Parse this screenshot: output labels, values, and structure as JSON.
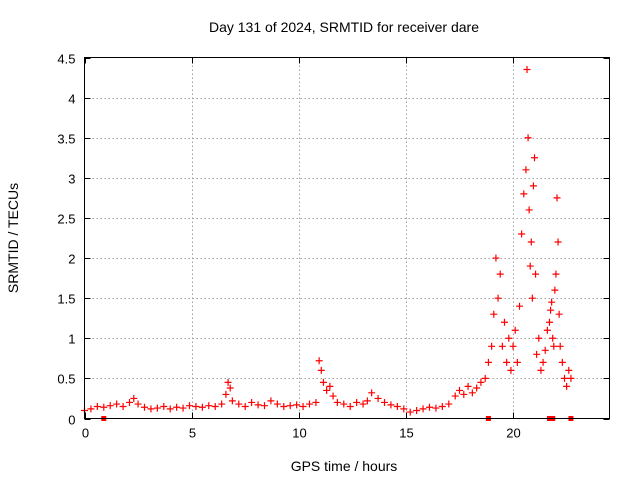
{
  "chart_data": {
    "type": "scatter",
    "title": "Day 131 of 2024, SRMTID for receiver dare",
    "xlabel": "GPS time / hours",
    "ylabel": "SRMTID / TECUs",
    "xlim": [
      0,
      24.5
    ],
    "ylim": [
      0,
      4.5
    ],
    "x_ticks": [
      0,
      5,
      10,
      15,
      20
    ],
    "x_tick_labels": [
      "0",
      "5",
      "10",
      "15",
      "20"
    ],
    "y_ticks": [
      0,
      0.5,
      1,
      1.5,
      2,
      2.5,
      3,
      3.5,
      4,
      4.5
    ],
    "y_tick_labels": [
      "0",
      "0.5",
      "1",
      "1.5",
      "2",
      "2.5",
      "3",
      "3.5",
      "4",
      "4.5"
    ],
    "grid": true,
    "marker": "+",
    "color": "#ff0000",
    "series": [
      {
        "name": "SRMTID",
        "x": [
          0.0,
          0.3,
          0.6,
          0.9,
          1.2,
          1.5,
          1.8,
          2.1,
          2.3,
          2.5,
          2.8,
          3.1,
          3.4,
          3.7,
          4.0,
          4.3,
          4.6,
          4.9,
          5.2,
          5.5,
          5.8,
          6.1,
          6.4,
          6.6,
          6.7,
          6.8,
          6.9,
          7.2,
          7.5,
          7.8,
          8.1,
          8.4,
          8.7,
          9.0,
          9.3,
          9.6,
          9.9,
          10.2,
          10.5,
          10.8,
          10.95,
          11.05,
          11.15,
          11.3,
          11.45,
          11.6,
          11.8,
          12.1,
          12.4,
          12.7,
          13.0,
          13.2,
          13.4,
          13.7,
          14.0,
          14.3,
          14.6,
          14.9,
          15.2,
          15.5,
          15.8,
          16.1,
          16.4,
          16.7,
          17.0,
          17.3,
          17.5,
          17.7,
          17.9,
          18.1,
          18.3,
          18.5,
          18.7,
          18.85,
          19.0,
          19.1,
          19.2,
          19.3,
          19.4,
          19.5,
          19.6,
          19.7,
          19.8,
          19.9,
          20.0,
          20.1,
          20.2,
          20.3,
          20.4,
          20.5,
          20.6,
          20.65,
          20.7,
          20.75,
          20.8,
          20.85,
          20.9,
          20.95,
          21.0,
          21.05,
          21.1,
          21.2,
          21.3,
          21.4,
          21.5,
          21.6,
          21.7,
          21.75,
          21.8,
          21.85,
          21.9,
          21.95,
          22.0,
          22.05,
          22.1,
          22.15,
          22.2,
          22.3,
          22.4,
          22.5,
          22.6,
          22.7
        ],
        "y": [
          0.1,
          0.12,
          0.15,
          0.14,
          0.16,
          0.18,
          0.15,
          0.2,
          0.25,
          0.18,
          0.14,
          0.12,
          0.13,
          0.15,
          0.12,
          0.14,
          0.13,
          0.16,
          0.15,
          0.14,
          0.16,
          0.15,
          0.18,
          0.3,
          0.45,
          0.38,
          0.22,
          0.18,
          0.15,
          0.2,
          0.17,
          0.16,
          0.22,
          0.18,
          0.15,
          0.16,
          0.17,
          0.15,
          0.18,
          0.2,
          0.72,
          0.6,
          0.45,
          0.35,
          0.4,
          0.28,
          0.2,
          0.18,
          0.15,
          0.2,
          0.18,
          0.22,
          0.32,
          0.25,
          0.2,
          0.17,
          0.15,
          0.12,
          0.08,
          0.1,
          0.12,
          0.14,
          0.13,
          0.15,
          0.18,
          0.28,
          0.35,
          0.3,
          0.4,
          0.32,
          0.38,
          0.45,
          0.5,
          0.7,
          0.9,
          1.3,
          2.0,
          1.5,
          1.8,
          0.9,
          1.2,
          0.7,
          1.0,
          0.6,
          0.9,
          1.1,
          0.7,
          1.4,
          2.3,
          2.8,
          3.1,
          4.35,
          3.5,
          2.6,
          1.9,
          2.2,
          1.5,
          2.9,
          3.25,
          1.8,
          0.8,
          1.0,
          0.6,
          0.7,
          0.85,
          1.1,
          1.2,
          1.35,
          1.45,
          1.0,
          0.9,
          1.6,
          1.8,
          2.75,
          2.2,
          1.3,
          0.9,
          0.7,
          0.5,
          0.4,
          0.6,
          0.5
        ]
      }
    ],
    "axis_markers_x": [
      0.9,
      18.85,
      21.7,
      21.85,
      22.7
    ]
  }
}
